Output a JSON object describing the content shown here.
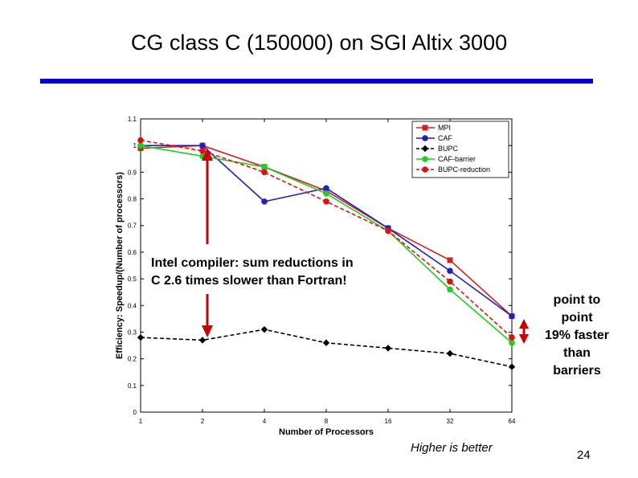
{
  "slide": {
    "title": "CG class C (150000) on SGI Altix 3000",
    "title_rule_color": "#0000cc",
    "annotation_line1": "Intel compiler: sum reductions in",
    "annotation_line2": "C 2.6 times slower than Fortran!",
    "side_note": [
      "point to",
      "point",
      "19% faster",
      "than",
      "barriers"
    ],
    "footnote": "Higher is better",
    "page_number": "24",
    "arrow_color": "#cc0000"
  },
  "chart_data": {
    "type": "line",
    "title": "",
    "xlabel": "Number of Processors",
    "ylabel": "Efficiency: Speedup/(Number of processors)",
    "x": [
      "1",
      "2",
      "4",
      "8",
      "16",
      "32",
      "64"
    ],
    "ylim": [
      0,
      1.1
    ],
    "yticks": [
      "0",
      "0.1",
      "0.2",
      "0.3",
      "0.4",
      "0.5",
      "0.6",
      "0.7",
      "0.8",
      "0.9",
      "1",
      "1.1"
    ],
    "grid": false,
    "legend_position": "top-right",
    "series": [
      {
        "name": "MPI",
        "color": "#cc2222",
        "dash": "solid",
        "marker": "square",
        "values": [
          0.99,
          1.0,
          0.92,
          0.83,
          0.69,
          0.57,
          0.36
        ]
      },
      {
        "name": "CAF",
        "color": "#2222bb",
        "dash": "solid",
        "marker": "circle",
        "values": [
          1.0,
          1.0,
          0.79,
          0.84,
          0.69,
          0.53,
          0.36
        ]
      },
      {
        "name": "BUPC",
        "color": "#000000",
        "dash": "dashed",
        "marker": "diamond",
        "values": [
          0.28,
          0.27,
          0.31,
          0.26,
          0.24,
          0.22,
          0.17
        ]
      },
      {
        "name": "CAF-barrier",
        "color": "#22cc22",
        "dash": "solid",
        "marker": "circle",
        "values": [
          1.0,
          0.96,
          0.92,
          0.82,
          0.68,
          0.46,
          0.26
        ]
      },
      {
        "name": "BUPC-reduction",
        "color": "#dd1111",
        "dash": "dashed",
        "marker": "circle",
        "values": [
          1.02,
          0.98,
          0.9,
          0.79,
          0.68,
          0.49,
          0.28
        ]
      }
    ]
  }
}
